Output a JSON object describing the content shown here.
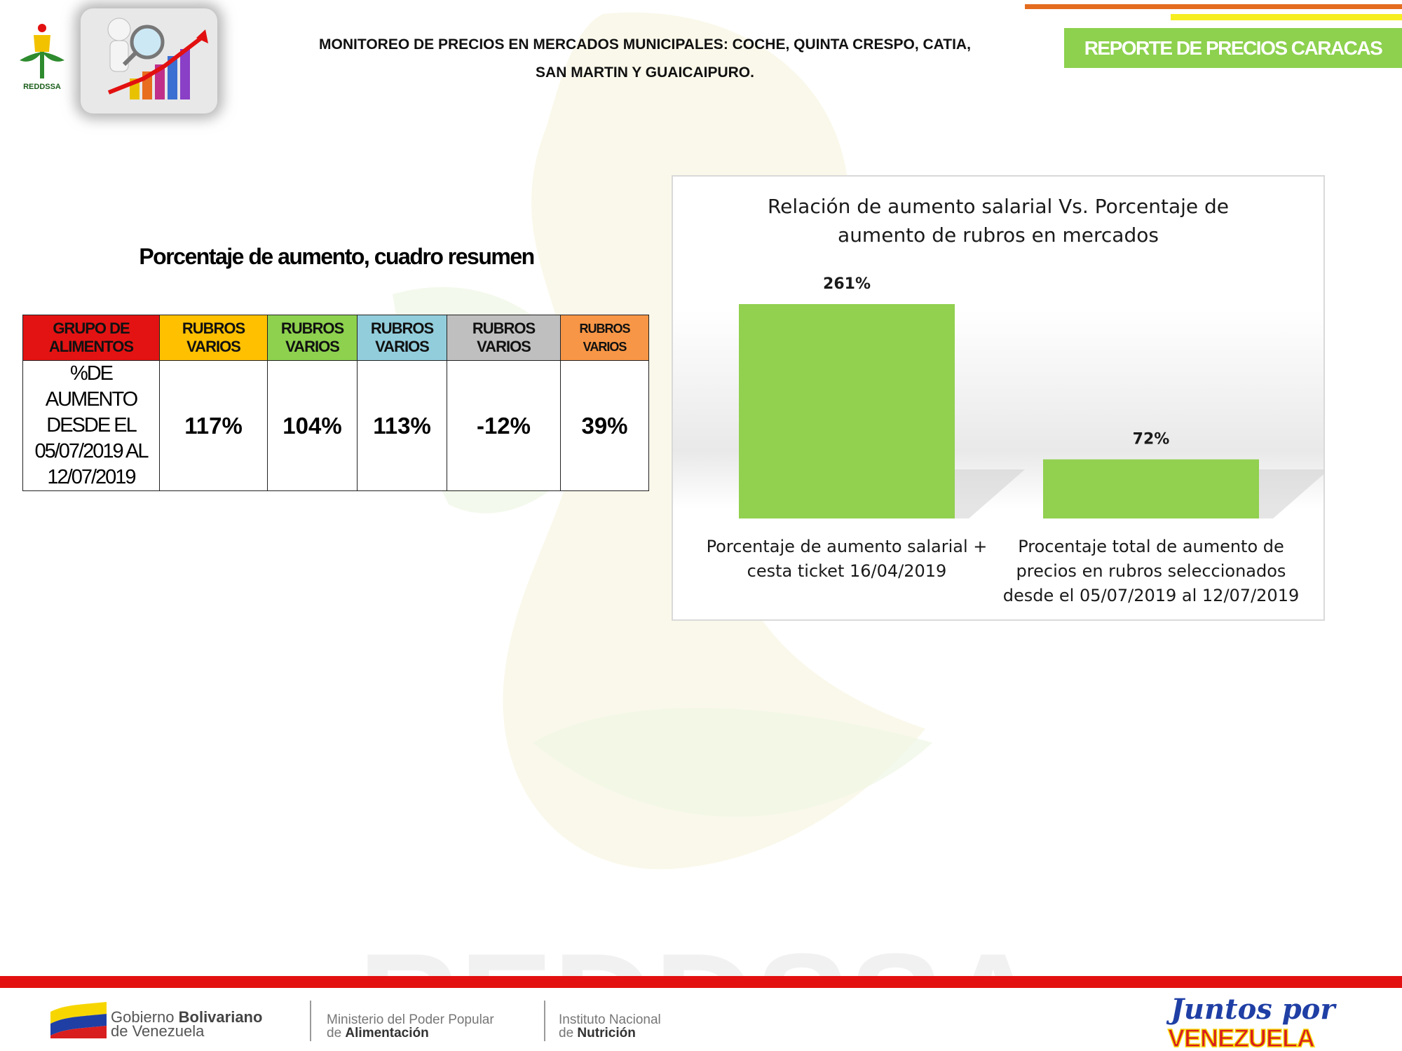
{
  "header": {
    "logo_text": "REDDSSA",
    "title_line1": "MONITOREO DE PRECIOS EN MERCADOS MUNICIPALES: COCHE, QUINTA CRESPO, CATIA,",
    "title_line2": "SAN MARTIN Y GUAICAIPURO.",
    "badge": "REPORTE DE PRECIOS CARACAS"
  },
  "summary": {
    "title": "Porcentaje de aumento, cuadro resumen",
    "headers": [
      {
        "line1": "GRUPO DE",
        "line2": "ALIMENTOS",
        "color": "#e31313"
      },
      {
        "line1": "RUBROS",
        "line2": "VARIOS",
        "color": "#ffc000"
      },
      {
        "line1": "RUBROS",
        "line2": "VARIOS",
        "color": "#8dd14e"
      },
      {
        "line1": "RUBROS",
        "line2": "VARIOS",
        "color": "#92cddc"
      },
      {
        "line1": "RUBROS",
        "line2": "VARIOS",
        "color": "#bfbfbf"
      },
      {
        "line1": "RUBROS",
        "line2": "VARIOS",
        "color": "#f79646"
      }
    ],
    "row_label_lines": [
      "%DE",
      "AUMENTO",
      "DESDE EL",
      "05/07/2019 AL",
      "12/07/2019"
    ],
    "values": [
      "117%",
      "104%",
      "113%",
      "-12%",
      "39%"
    ]
  },
  "chart_data": {
    "type": "bar",
    "title": "Relación de aumento salarial Vs. Porcentaje de aumento de rubros en mercados",
    "title_lines": [
      "Relación de aumento salarial Vs. Porcentaje de",
      "aumento de rubros en mercados"
    ],
    "categories": [
      "Porcentaje de aumento salarial + cesta ticket 16/04/2019",
      "Procentaje total de aumento de precios en rubros seleccionados desde el 05/07/2019 al 12/07/2019"
    ],
    "category_lines": [
      [
        "Porcentaje de aumento salarial +",
        "cesta ticket 16/04/2019"
      ],
      [
        "Procentaje total de aumento de",
        "precios en rubros seleccionados",
        "desde el 05/07/2019 al 12/07/2019"
      ]
    ],
    "values": [
      261,
      72
    ],
    "data_labels": [
      "261%",
      "72%"
    ],
    "ylim": [
      0,
      300
    ],
    "grid": false,
    "legend": "none",
    "bar_color": "#92d050"
  },
  "footer": {
    "gov_line1_a": "Gobierno ",
    "gov_line1_b": "Bolivariano",
    "gov_line2": "de Venezuela",
    "min_line1": "Ministerio del Poder Popular",
    "min_line2_a": "de ",
    "min_line2_b": "Alimentación",
    "inn_line1": "Instituto Nacional",
    "inn_line2_a": "de ",
    "inn_line2_b": "Nutrición",
    "juntos_line1": "Juntos por",
    "juntos_line2": "VENEZUELA"
  },
  "colors": {
    "accent_green": "#8dd14e",
    "accent_orange": "#e46c1f",
    "accent_yellow": "#f7ee22",
    "footer_red": "#e21010"
  }
}
